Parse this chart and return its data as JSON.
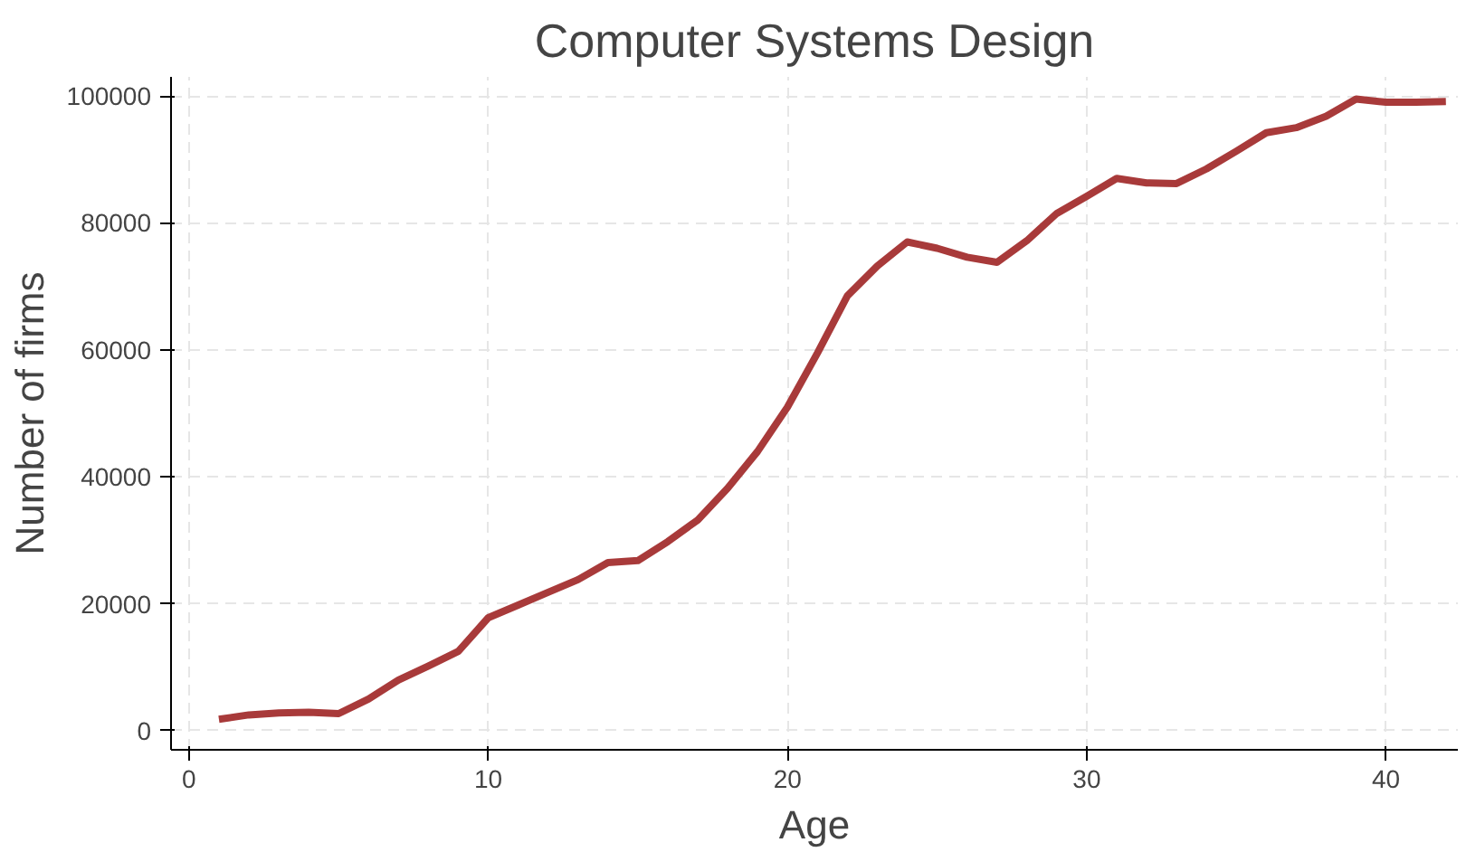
{
  "chart_data": {
    "type": "line",
    "title": "Computer Systems Design",
    "xlabel": "Age",
    "ylabel": "Number of firms",
    "x": [
      1,
      2,
      3,
      4,
      5,
      6,
      7,
      8,
      9,
      10,
      11,
      12,
      13,
      14,
      15,
      16,
      17,
      18,
      19,
      20,
      21,
      22,
      23,
      24,
      25,
      26,
      27,
      28,
      29,
      30,
      31,
      32,
      33,
      34,
      35,
      36,
      37,
      38,
      39,
      40,
      41,
      42
    ],
    "series": [
      {
        "color": "#a83a3a",
        "values": [
          1800,
          2500,
          2800,
          2900,
          2700,
          5000,
          8000,
          10200,
          12500,
          17800,
          19800,
          21800,
          23800,
          26500,
          26800,
          29800,
          33200,
          38200,
          44000,
          51000,
          59500,
          68500,
          73200,
          77000,
          76000,
          74600,
          73800,
          77200,
          81500,
          84200,
          87000,
          86300,
          86200,
          88500,
          91300,
          94200,
          95000,
          96800,
          99500,
          99000,
          99000,
          99100
        ]
      }
    ],
    "xlim": [
      -0.6,
      42.4
    ],
    "ylim": [
      -3000,
      103000
    ],
    "xticks": [
      0,
      10,
      20,
      30,
      40
    ],
    "yticks": [
      0,
      20000,
      40000,
      60000,
      80000,
      100000
    ],
    "grid": true,
    "marker": "none",
    "line_style": "solid"
  }
}
